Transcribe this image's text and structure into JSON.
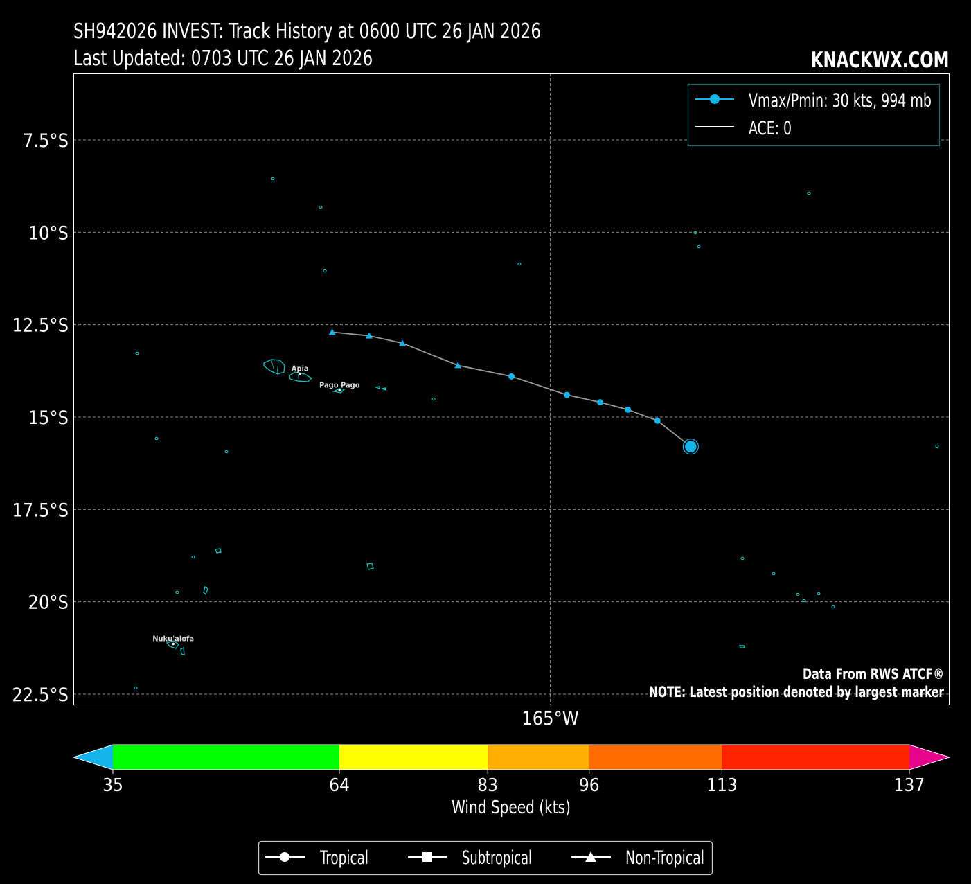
{
  "header": {
    "title": "SH942026 INVEST: Track History at 0600 UTC 26 JAN 2026",
    "subtitle": "Last Updated: 0703 UTC 26 JAN 2026",
    "brand": "KNACKWX.COM"
  },
  "map": {
    "lat_range": [
      -22.8,
      -5.7
    ],
    "lon_range": [
      -177.9,
      -154.2
    ],
    "lat_ticks": [
      {
        "value": -7.5,
        "label": "7.5°S"
      },
      {
        "value": -10,
        "label": "10°S"
      },
      {
        "value": -12.5,
        "label": "12.5°S"
      },
      {
        "value": -15,
        "label": "15°S"
      },
      {
        "value": -17.5,
        "label": "17.5°S"
      },
      {
        "value": -20,
        "label": "20°S"
      },
      {
        "value": -22.5,
        "label": "22.5°S"
      }
    ],
    "lon_ticks": [
      {
        "value": -165,
        "label": "165°W"
      }
    ],
    "grid": "dashed",
    "coastline_color": "#1fb5b5",
    "cities": [
      {
        "name": "Apia",
        "lat": -13.83,
        "lon": -171.77
      },
      {
        "name": "Pago Pago",
        "lat": -14.28,
        "lon": -170.7
      },
      {
        "name": "Nuku'alofa",
        "lat": -21.14,
        "lon": -175.2
      }
    ],
    "note1": "Data From RWS ATCF®",
    "note2": "NOTE: Latest position denoted by largest marker"
  },
  "track": {
    "color": "#12b4ea",
    "line_color": "#9a9a9a",
    "points": [
      {
        "lat": -12.7,
        "lon": -170.9,
        "type": "Non-Tropical"
      },
      {
        "lat": -12.8,
        "lon": -169.9,
        "type": "Non-Tropical"
      },
      {
        "lat": -13.0,
        "lon": -169.0,
        "type": "Non-Tropical"
      },
      {
        "lat": -13.6,
        "lon": -167.5,
        "type": "Non-Tropical"
      },
      {
        "lat": -13.9,
        "lon": -166.05,
        "type": "Tropical"
      },
      {
        "lat": -14.4,
        "lon": -164.55,
        "type": "Tropical"
      },
      {
        "lat": -14.6,
        "lon": -163.65,
        "type": "Tropical"
      },
      {
        "lat": -14.8,
        "lon": -162.9,
        "type": "Tropical"
      },
      {
        "lat": -15.1,
        "lon": -162.1,
        "type": "Tropical"
      },
      {
        "lat": -15.8,
        "lon": -161.2,
        "type": "Tropical",
        "latest": true
      }
    ]
  },
  "legend": {
    "items": [
      {
        "label": "Vmax/Pmin: 30 kts, 994 mb"
      },
      {
        "label": "ACE: 0"
      }
    ]
  },
  "colorbar": {
    "label": "Wind Speed (kts)",
    "under_color": "#12b4ea",
    "over_color": "#e6048c",
    "bounds": [
      35,
      64,
      83,
      96,
      113,
      137
    ],
    "colors": [
      "#00ff00",
      "#ffff00",
      "#ffae00",
      "#ff6c00",
      "#ff2400"
    ]
  },
  "type_legend": {
    "items": [
      {
        "label": "Tropical",
        "marker": "circle"
      },
      {
        "label": "Subtropical",
        "marker": "square"
      },
      {
        "label": "Non-Tropical",
        "marker": "triangle"
      }
    ]
  }
}
